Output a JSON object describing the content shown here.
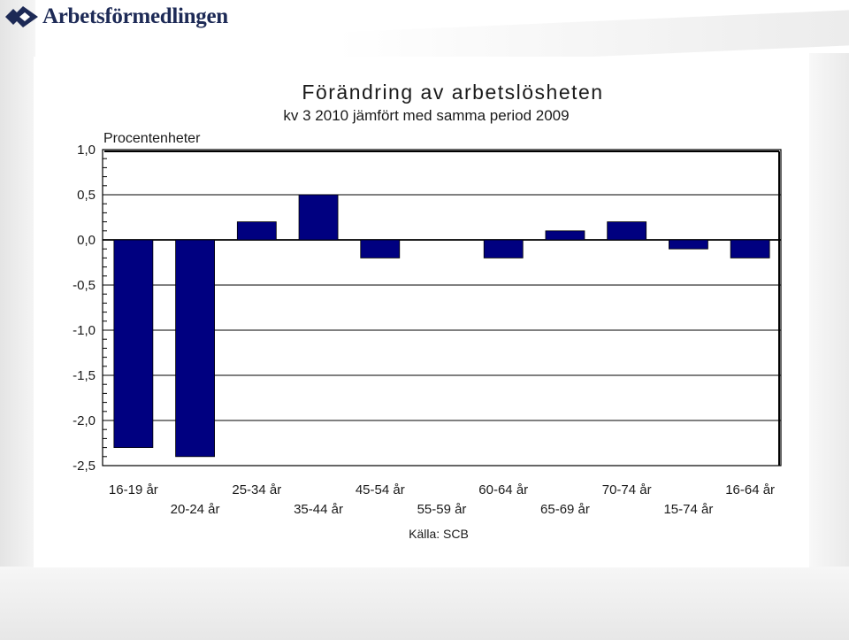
{
  "header": {
    "logo_text": "Arbetsförmedlingen",
    "logo_icon": "arbetsformedlingen-logo-icon"
  },
  "chart_data": {
    "type": "bar",
    "title": "Förändring av arbetslösheten",
    "subtitle": "kv 3 2010 jämfört med samma period 2009",
    "ylabel": "Procentenheter",
    "xlabel": "",
    "categories": [
      "16-19 år",
      "20-24 år",
      "25-34 år",
      "35-44 år",
      "45-54 år",
      "55-59 år",
      "60-64 år",
      "65-69 år",
      "70-74 år",
      "15-74 år",
      "16-64 år"
    ],
    "values": [
      -2.3,
      -2.4,
      0.2,
      0.5,
      -0.2,
      0.0,
      -0.2,
      0.1,
      0.2,
      -0.1,
      -0.2
    ],
    "ylim": [
      -2.5,
      1.0
    ],
    "yticks": [
      1.0,
      0.5,
      0.0,
      -0.5,
      -1.0,
      -1.5,
      -2.0,
      -2.5
    ],
    "ytick_labels": [
      "1,0",
      "0,5",
      "0,0",
      "-0,5",
      "-1,0",
      "-1,5",
      "-2,0",
      "-2,5"
    ],
    "grid": true,
    "legend": "none",
    "source": "Källa: SCB",
    "colors": {
      "bar": "#000080",
      "grid": "#000000",
      "background": "#ffffff"
    }
  }
}
